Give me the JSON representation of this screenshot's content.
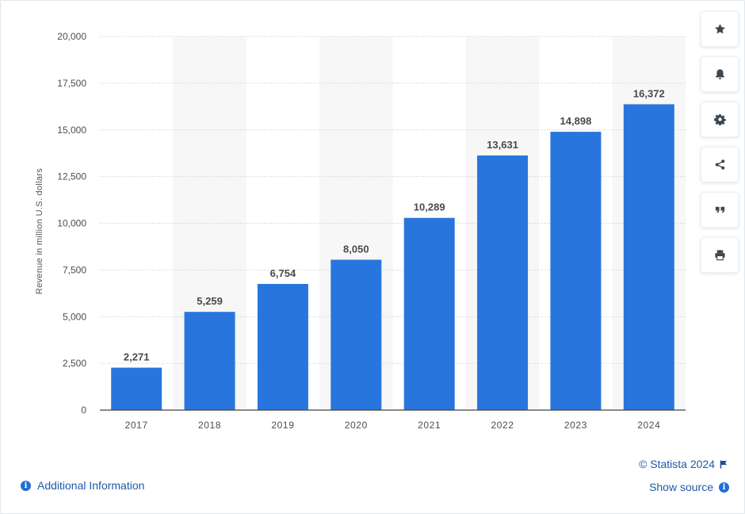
{
  "chart_data": {
    "type": "bar",
    "categories": [
      "2017",
      "2018",
      "2019",
      "2020",
      "2021",
      "2022",
      "2023",
      "2024"
    ],
    "values": [
      2271,
      5259,
      6754,
      8050,
      10289,
      13631,
      14898,
      16372
    ],
    "value_labels": [
      "2,271",
      "5,259",
      "6,754",
      "8,050",
      "10,289",
      "13,631",
      "14,898",
      "16,372"
    ],
    "ylabel": "Revenue in million U.S. dollars",
    "xlabel": "",
    "ylim": [
      0,
      20000
    ],
    "yticks": [
      0,
      2500,
      5000,
      7500,
      10000,
      12500,
      15000,
      17500,
      20000
    ],
    "ytick_labels": [
      "0",
      "2,500",
      "5,000",
      "7,500",
      "10,000",
      "12,500",
      "15,000",
      "17,500",
      "20,000"
    ],
    "grid": "horizontal dotted",
    "bar_color": "#2876dd",
    "alternating_column_shading": "#f7f7f7"
  },
  "toolbar": [
    {
      "name": "favorite-button",
      "icon": "star-icon"
    },
    {
      "name": "notification-button",
      "icon": "bell-icon"
    },
    {
      "name": "settings-button",
      "icon": "gear-icon"
    },
    {
      "name": "share-button",
      "icon": "share-icon"
    },
    {
      "name": "cite-button",
      "icon": "quote-icon"
    },
    {
      "name": "print-button",
      "icon": "printer-icon"
    }
  ],
  "footer": {
    "credit": "© Statista 2024",
    "show_source": "Show source",
    "additional_info": "Additional Information"
  },
  "colors": {
    "link": "#1f5aa8",
    "bar": "#2876dd",
    "icon": "#4a5560"
  }
}
